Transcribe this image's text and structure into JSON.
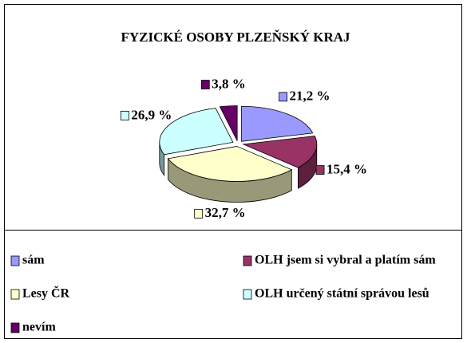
{
  "chart_data": {
    "type": "pie3d",
    "title": "FYZICKÉ OSOBY PLZEŇSKÝ KRAJ",
    "categories": [
      "sám",
      "OLH jsem si vybral a platím sám",
      "Lesy ČR",
      "OLH určený státní správou lesů",
      "nevím"
    ],
    "values": [
      21.2,
      15.4,
      32.7,
      26.9,
      3.8
    ],
    "value_labels": [
      "21,2 %",
      "15,4 %",
      "32,7 %",
      "26,9 %",
      "3,8 %"
    ],
    "colors": [
      "#9999ff",
      "#993366",
      "#ffffcc",
      "#ccffff",
      "#660066"
    ],
    "legend": "bottom"
  }
}
